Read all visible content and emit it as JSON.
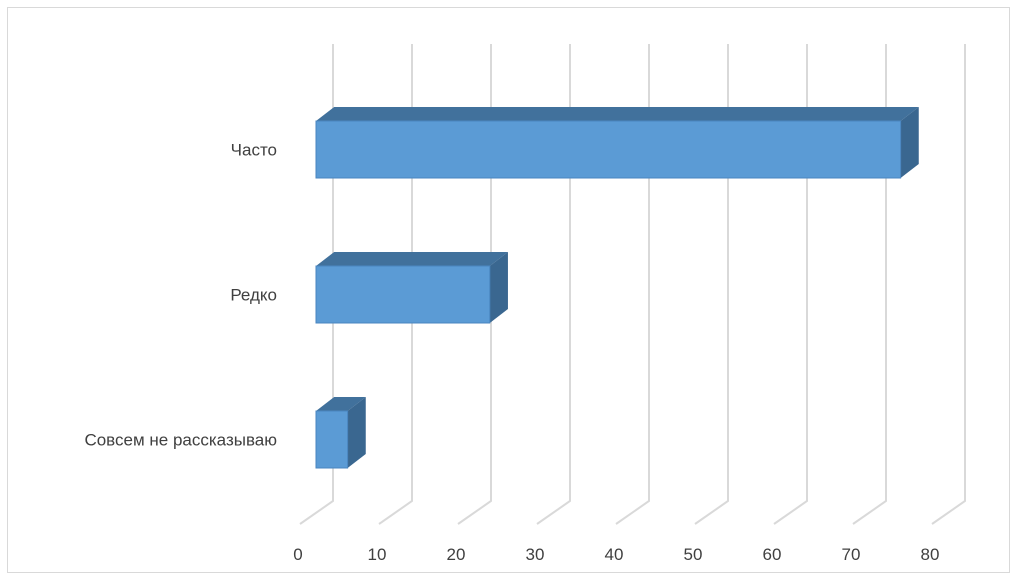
{
  "chart_data": {
    "type": "bar",
    "orientation": "horizontal",
    "style": "3d",
    "categories": [
      "Часто",
      "Редко",
      "Совсем не рассказываю"
    ],
    "values": [
      74,
      22,
      4
    ],
    "xlim": [
      0,
      80
    ],
    "x_ticks": [
      "0",
      "10",
      "20",
      "30",
      "40",
      "50",
      "60",
      "70",
      "80"
    ],
    "grid": true,
    "legend": "none",
    "colors": {
      "bar_front": "#5b9bd5",
      "bar_top": "#41719c",
      "bar_side": "#3a6790",
      "grid": "#d9d9d9"
    }
  }
}
